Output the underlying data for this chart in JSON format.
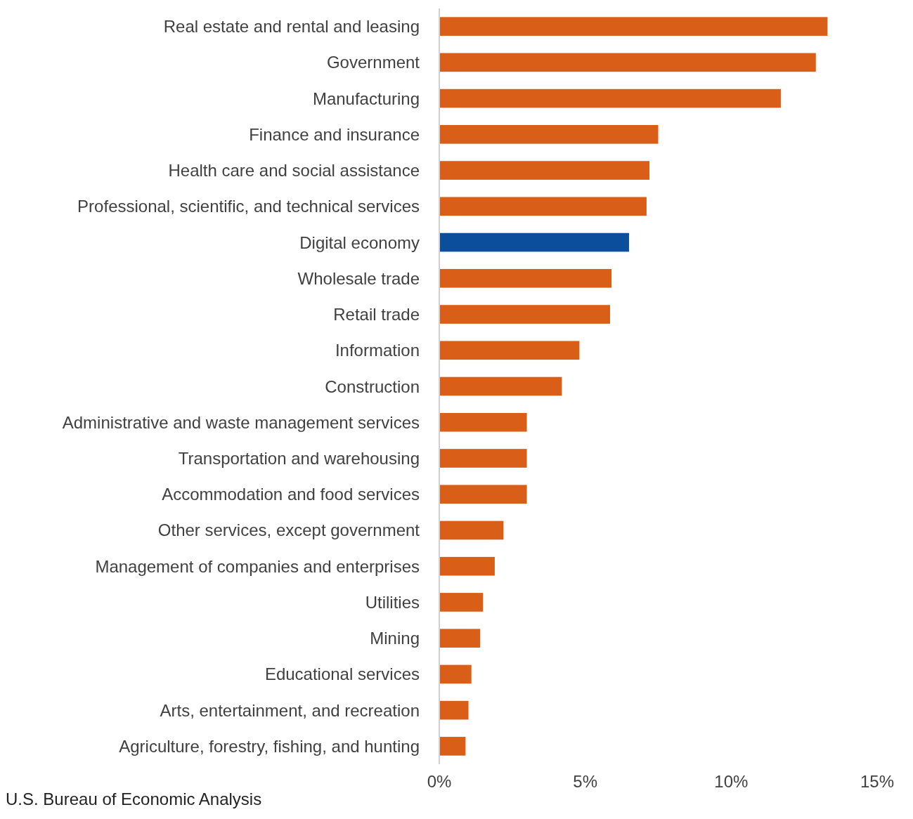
{
  "chart_data": {
    "type": "bar",
    "orientation": "horizontal",
    "categories": [
      "Real estate and rental and leasing",
      "Government",
      "Manufacturing",
      "Finance and insurance",
      "Health care and social assistance",
      "Professional, scientific, and technical services",
      "Digital economy",
      "Wholesale trade",
      "Retail trade",
      "Information",
      "Construction",
      "Administrative and waste management services",
      "Transportation and warehousing",
      "Accommodation and food services",
      "Other services, except government",
      "Management of companies and enterprises",
      "Utilities",
      "Mining",
      "Educational services",
      "Arts, entertainment, and recreation",
      "Agriculture, forestry, fishing, and hunting"
    ],
    "values": [
      13.3,
      12.9,
      11.7,
      7.5,
      7.2,
      7.1,
      6.5,
      5.9,
      5.85,
      4.8,
      4.2,
      3.0,
      3.0,
      3.0,
      2.2,
      1.9,
      1.5,
      1.4,
      1.1,
      1.0,
      0.9
    ],
    "colors": [
      "#d95f18",
      "#d95f18",
      "#d95f18",
      "#d95f18",
      "#d95f18",
      "#d95f18",
      "#0b4f9c",
      "#d95f18",
      "#d95f18",
      "#d95f18",
      "#d95f18",
      "#d95f18",
      "#d95f18",
      "#d95f18",
      "#d95f18",
      "#d95f18",
      "#d95f18",
      "#d95f18",
      "#d95f18",
      "#d95f18",
      "#d95f18"
    ],
    "xlim": [
      0,
      15
    ],
    "xticks": [
      {
        "value": 0,
        "label": "0%"
      },
      {
        "value": 5,
        "label": "5%"
      },
      {
        "value": 10,
        "label": "10%"
      },
      {
        "value": 15,
        "label": "15%"
      }
    ],
    "annotations": [
      "U.S. Bureau of Economic Analysis"
    ]
  }
}
